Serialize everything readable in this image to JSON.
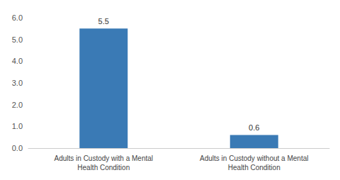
{
  "chart_data": {
    "type": "bar",
    "categories": [
      "Adults in Custody with a Mental\nHealth Condition",
      "Adults in Custody without a Mental\nHealth Condition"
    ],
    "values": [
      5.5,
      0.6
    ],
    "color": "#3a7ab5",
    "ylim": [
      0.0,
      6.0
    ],
    "yticks": [
      {
        "value": 0,
        "label": "0.0"
      },
      {
        "value": 1,
        "label": "1.0"
      },
      {
        "value": 2,
        "label": "2.0"
      },
      {
        "value": 3,
        "label": "3.0"
      },
      {
        "value": 4,
        "label": "4.0"
      },
      {
        "value": 5,
        "label": "5.0"
      },
      {
        "value": 6,
        "label": "6.0"
      }
    ],
    "grid": false,
    "data_labels": true
  }
}
